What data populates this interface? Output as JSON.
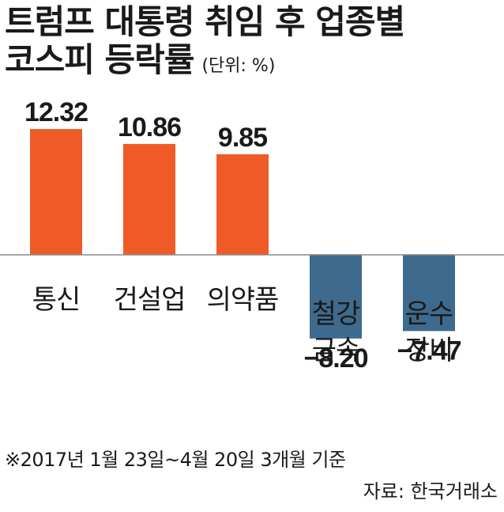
{
  "header": {
    "title_line1": "트럼프 대통령 취임 후 업종별",
    "title_line2": "코스피 등락률",
    "unit": "(단위: %)"
  },
  "chart_data": {
    "type": "bar",
    "categories": [
      [
        "통신"
      ],
      [
        "건설업"
      ],
      [
        "의약품"
      ],
      [
        "철강",
        "금속"
      ],
      [
        "운수",
        "장비"
      ]
    ],
    "values": [
      12.32,
      10.86,
      9.85,
      -8.2,
      -7.47
    ],
    "value_labels": [
      "12.32",
      "10.86",
      "9.85",
      "−8.20",
      "−7.47"
    ],
    "colors": {
      "positive": "#f05a28",
      "negative": "#3e6a8e",
      "axis": "#888888"
    },
    "title": "트럼프 대통령 취임 후 업종별 코스피 등락률",
    "xlabel": "",
    "ylabel": "",
    "ylim": [
      -9.2,
      14.0
    ],
    "grid": false,
    "legend": "none"
  },
  "footer": {
    "note": "※2017년 1월 23일~4월 20일 3개월 기준",
    "source": "자료: 한국거래소"
  }
}
